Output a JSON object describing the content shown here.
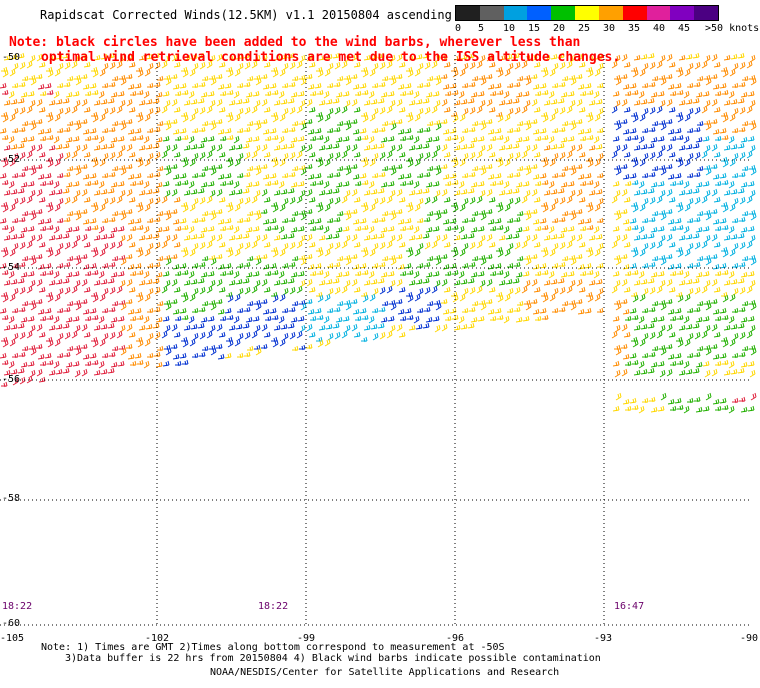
{
  "title": "Rapidscat Corrected Winds(12.5KM) v1.1 20150804 ascending",
  "legend": {
    "labels": [
      "0",
      "5",
      "10",
      "15",
      "20",
      "25",
      "30",
      "35",
      "40",
      "45",
      ">50 knots"
    ],
    "colors": [
      "#202020",
      "#606060",
      "#00a0e0",
      "#0060ff",
      "#00c000",
      "#ffff00",
      "#ffa000",
      "#ff0000",
      "#e0209c",
      "#8000c0",
      "#4b0082"
    ]
  },
  "note": {
    "line1": "Note: black circles have been added to the wind barbs, wherever less than",
    "line2": "optimal wind retrieval conditions are met due to the ISS altitude changes."
  },
  "y_labels": [
    "-50",
    "-52",
    "-54",
    "-56",
    "-58",
    "-60"
  ],
  "x_labels": [
    "-105",
    "-102",
    "-99",
    "-96",
    "-93",
    "-90"
  ],
  "times": [
    "18:22",
    "18:22",
    "16:47"
  ],
  "footer": {
    "line1": "Note: 1) Times are GMT 2)Times along bottom correspond to measurement at -50S",
    "line2": "3)Data buffer is 22 hrs from 20150804 4) Black wind barbs indicate possible contamination",
    "line3": "NOAA/NESDIS/Center for Satellite Applications and Research"
  },
  "palette": {
    "red": "#e0203c",
    "orange": "#ff8c00",
    "yellow": "#ffd700",
    "green": "#22b000",
    "blue": "#0030d0",
    "cyan": "#00b0e0",
    "note": "#ff0000",
    "time": "#6a006a"
  }
}
